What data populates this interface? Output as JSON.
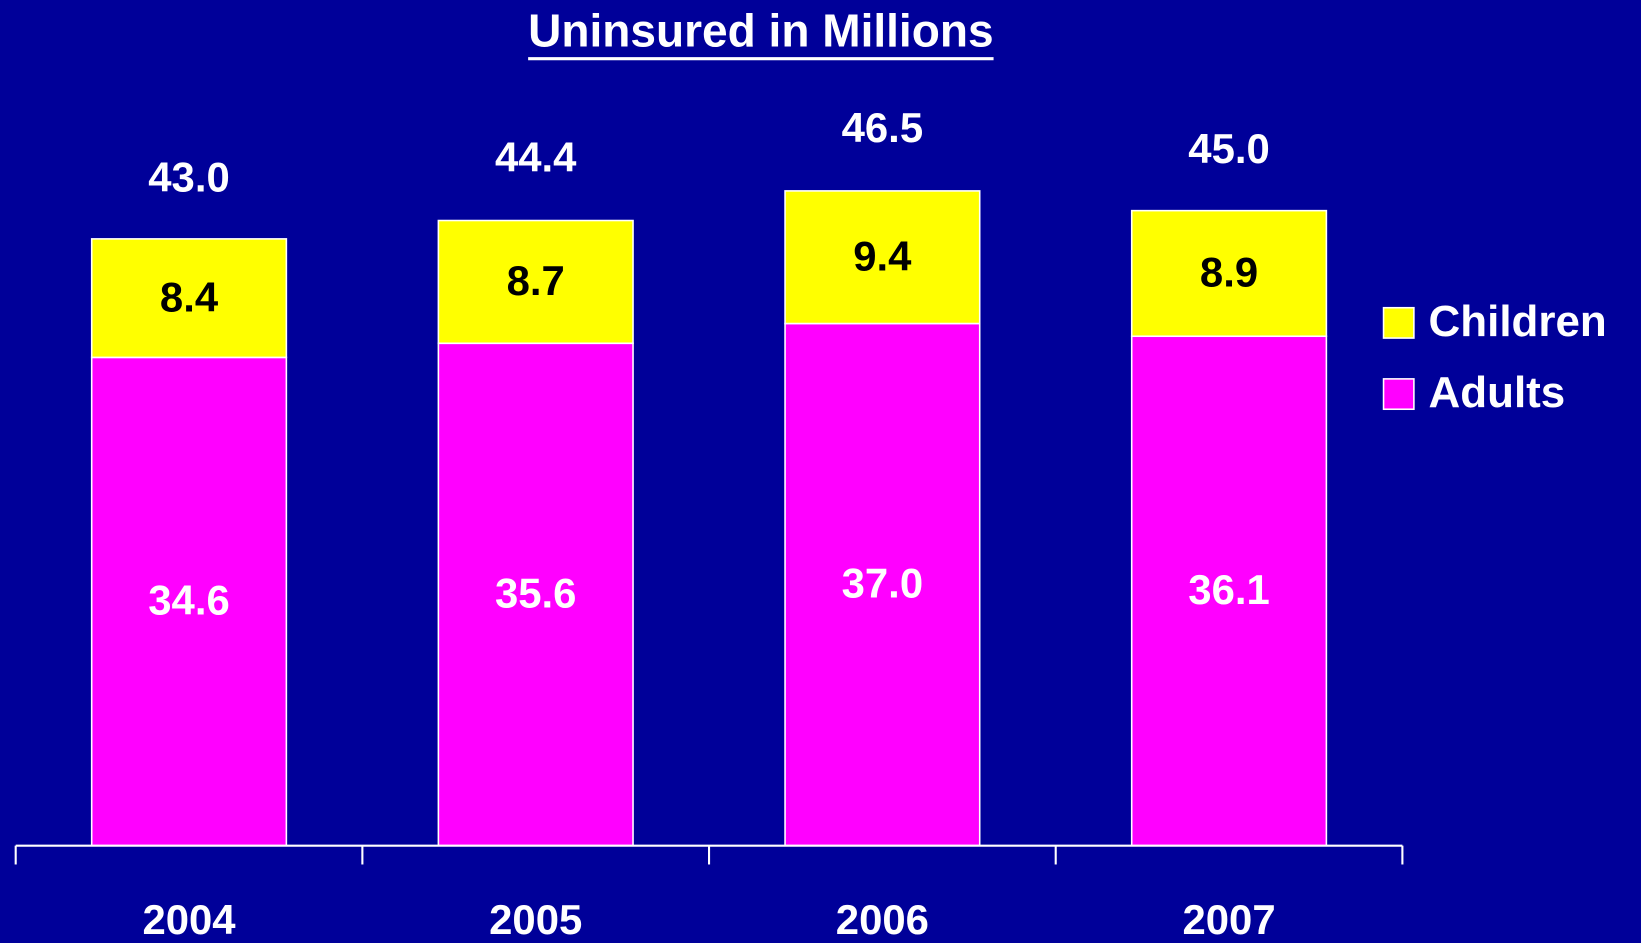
{
  "chart_data": {
    "type": "stacked_bar",
    "title": "Uninsured in Millions",
    "categories": [
      "2004",
      "2005",
      "2006",
      "2007"
    ],
    "series": [
      {
        "name": "Adults",
        "color": "#ff00ff",
        "values": [
          34.6,
          35.6,
          37.0,
          36.1
        ],
        "value_labels": [
          "34.6",
          "35.6",
          "37.0",
          "36.1"
        ],
        "label_color": "#ffffff"
      },
      {
        "name": "Children",
        "color": "#ffff00",
        "values": [
          8.4,
          8.7,
          9.4,
          8.9
        ],
        "label_color": "#000000"
      }
    ],
    "totals": [
      43.0,
      44.4,
      46.5,
      45.0
    ],
    "total_labels": [
      "43.0",
      "44.4",
      "46.5",
      "45.0"
    ],
    "ylim": [
      0,
      60
    ],
    "legend": "right"
  }
}
